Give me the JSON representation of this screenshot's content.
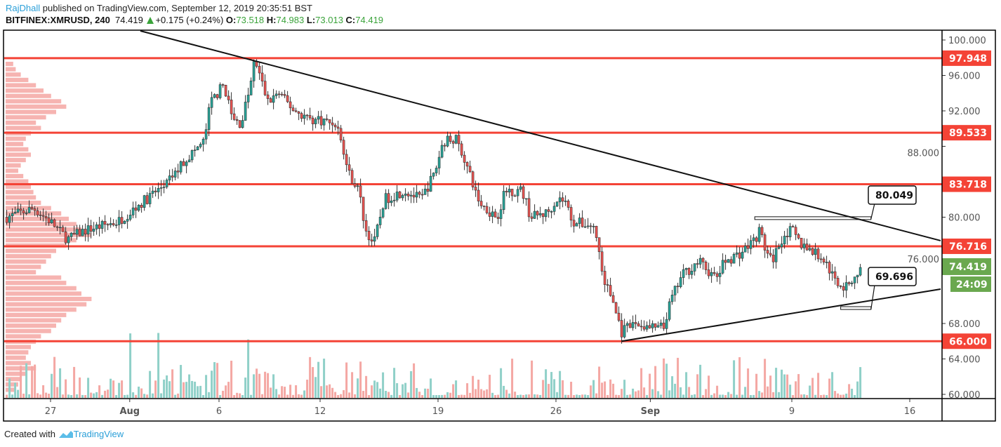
{
  "header": {
    "author": "RajDhall",
    "published": "published on TradingView.com, September 12, 2019 20:35:51 BST",
    "symbol": "BITFINEX:XMRUSD, 240",
    "last": "74.419",
    "change": "+0.175 (+0.24%)",
    "o_label": "O:",
    "o": "73.518",
    "h_label": "H:",
    "h": "74.983",
    "l_label": "L:",
    "l": "73.013",
    "c_label": "C:",
    "c": "74.419"
  },
  "footer": {
    "created_with": "Created with",
    "brand": "TradingView"
  },
  "colors": {
    "up": "#26a69a",
    "down": "#ef5350",
    "level": "#f44336",
    "last": "#6aa84f",
    "vol_up": "#8fd0c8",
    "vol_down": "#f4a7a3",
    "profile": "#f4a7a3"
  },
  "chart_data": {
    "type": "candlestick",
    "title": "BITFINEX:XMRUSD, 240",
    "x_unit": "days since Jul 27 2019",
    "ylim": [
      60,
      100
    ],
    "xlim": [
      -2.67,
      52.8
    ],
    "y_ticks": [
      "100.000",
      "96.000",
      "92.000",
      "88.000",
      "80.000",
      "76.000",
      "68.000",
      "64.000",
      "60.000"
    ],
    "y_tick_values": [
      100,
      96,
      92,
      88,
      80,
      76,
      68,
      64,
      60
    ],
    "x_ticks": [
      {
        "label": "27",
        "day": 0
      },
      {
        "label": "Aug",
        "day": 4.7
      },
      {
        "label": "6",
        "day": 10
      },
      {
        "label": "12",
        "day": 16
      },
      {
        "label": "19",
        "day": 23
      },
      {
        "label": "26",
        "day": 30
      },
      {
        "label": "Sep",
        "day": 35.6
      },
      {
        "label": "9",
        "day": 44
      },
      {
        "label": "16",
        "day": 51
      }
    ],
    "price_path": [
      [
        -2.6,
        80
      ],
      [
        -1,
        81
      ],
      [
        0,
        79.5
      ],
      [
        1,
        77.5
      ],
      [
        2,
        78.5
      ],
      [
        3,
        79
      ],
      [
        4,
        79.5
      ],
      [
        5,
        81
      ],
      [
        6,
        82.5
      ],
      [
        7,
        84
      ],
      [
        8,
        86.5
      ],
      [
        9.1,
        88.5
      ],
      [
        9.5,
        93
      ],
      [
        10.3,
        95
      ],
      [
        10.8,
        91
      ],
      [
        11.3,
        90.5
      ],
      [
        12,
        96
      ],
      [
        12.1,
        97.9
      ],
      [
        12.9,
        93
      ],
      [
        13.5,
        94
      ],
      [
        14.5,
        92
      ],
      [
        15.5,
        91
      ],
      [
        16,
        91
      ],
      [
        17,
        90.5
      ],
      [
        17.3,
        88
      ],
      [
        17.7,
        85
      ],
      [
        18.3,
        83
      ],
      [
        18.7,
        78.5
      ],
      [
        19.2,
        77
      ],
      [
        19.8,
        82
      ],
      [
        21,
        83
      ],
      [
        22,
        82
      ],
      [
        22.8,
        85
      ],
      [
        23.3,
        88.5
      ],
      [
        24,
        89
      ],
      [
        24.5,
        87
      ],
      [
        25,
        84
      ],
      [
        25.5,
        81.5
      ],
      [
        26.5,
        80
      ],
      [
        27,
        83
      ],
      [
        28,
        83
      ],
      [
        28.5,
        80
      ],
      [
        29.5,
        80.5
      ],
      [
        30,
        82
      ],
      [
        30.5,
        82
      ],
      [
        31,
        79.5
      ],
      [
        32.2,
        79
      ],
      [
        32.5,
        77
      ],
      [
        32.8,
        73
      ],
      [
        33.3,
        71
      ],
      [
        33.9,
        67
      ],
      [
        34.7,
        68
      ],
      [
        35.5,
        67.5
      ],
      [
        36,
        67.5
      ],
      [
        36.4,
        67.5
      ],
      [
        36.8,
        70.5
      ],
      [
        37.5,
        73.5
      ],
      [
        38.5,
        75
      ],
      [
        39,
        74
      ],
      [
        39.5,
        73
      ],
      [
        40,
        75
      ],
      [
        41,
        76
      ],
      [
        41.8,
        77.5
      ],
      [
        42.1,
        78.5
      ],
      [
        42.5,
        76
      ],
      [
        42.8,
        75
      ],
      [
        43.5,
        78
      ],
      [
        44,
        78.5
      ],
      [
        44.5,
        77
      ],
      [
        45,
        76.5
      ],
      [
        46,
        75
      ],
      [
        46.5,
        73
      ],
      [
        47.2,
        72
      ],
      [
        47.8,
        73.5
      ],
      [
        48.2,
        74.4
      ]
    ],
    "volume_profile": [
      3,
      4,
      6,
      9,
      12,
      15,
      18,
      22,
      24,
      20,
      16,
      12,
      14,
      10,
      8,
      7,
      9,
      10,
      8,
      6,
      5,
      7,
      9,
      10,
      11,
      12,
      14,
      18,
      22,
      25,
      28,
      30,
      34,
      28,
      24,
      20,
      18,
      16,
      14,
      12,
      22,
      24,
      28,
      30,
      34,
      32,
      28,
      24,
      22,
      20,
      18,
      14,
      12,
      10,
      9,
      8,
      10,
      12,
      8,
      6,
      5,
      4
    ],
    "horizontal_levels": [
      97.948,
      89.533,
      83.718,
      76.716,
      66.0
    ],
    "level_labels": [
      "97.948",
      "89.533",
      "83.718",
      "76.716",
      "66.000"
    ],
    "trendlines": [
      {
        "name": "descending-resistance",
        "from": [
          5.33,
          101.03
        ],
        "to": [
          52.83,
          77.35
        ]
      },
      {
        "name": "ascending-support",
        "from": [
          33.9,
          66.0
        ],
        "to": [
          52.83,
          71.88
        ]
      }
    ],
    "callouts": [
      {
        "label": "80.049",
        "range_from": [
          41.8,
          80.049
        ],
        "range_to": [
          48.7,
          79.8
        ],
        "box_price": 82.5
      },
      {
        "label": "69.696",
        "range_from": [
          46.9,
          69.9
        ],
        "range_to": [
          48.7,
          69.6
        ],
        "box_price": 73.3
      }
    ],
    "last_price": "74.419",
    "countdown": "24:09"
  }
}
